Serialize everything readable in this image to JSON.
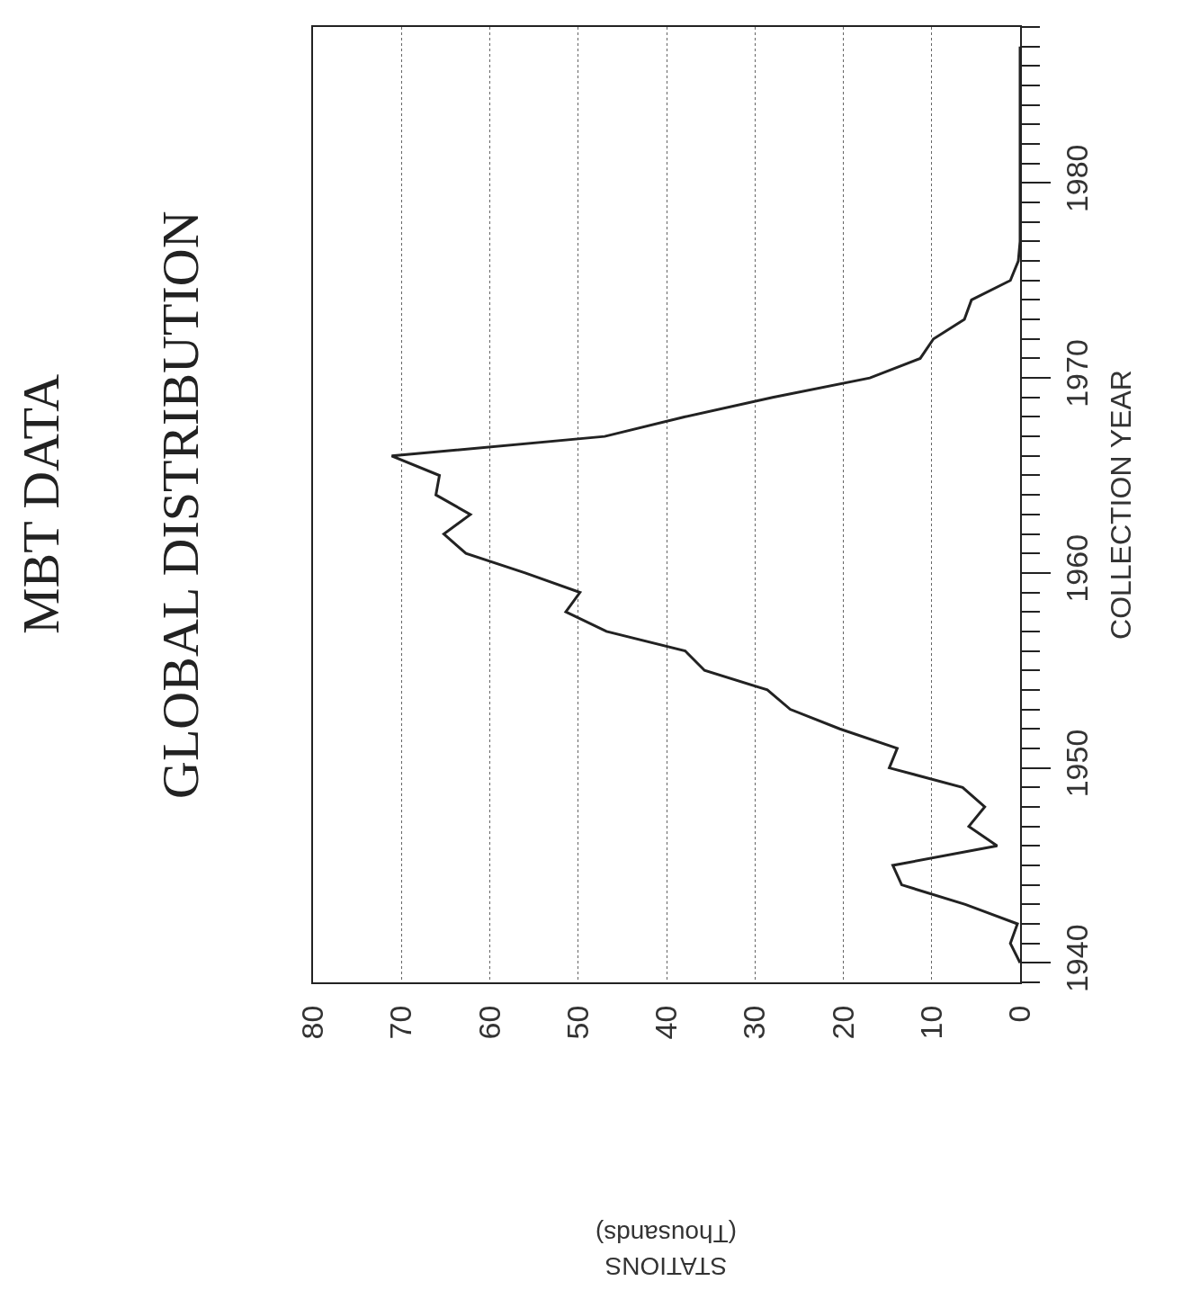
{
  "chart_data": {
    "type": "line",
    "title": "MBT DATA",
    "subtitle": "GLOBAL DISTRIBUTION",
    "annotations": [
      "STATIONS\n(Thousands)"
    ],
    "ylabel": "COLLECTION YEAR",
    "series": [
      {
        "color": "#222222",
        "x": [
          0,
          1.1,
          0.3,
          6.2,
          13.4,
          14.4,
          2.6,
          5.8,
          4,
          6.5,
          14.8,
          13.9,
          20.4,
          26,
          28.6,
          35.7,
          37.9,
          46.8,
          51.4,
          49.8,
          56,
          62.7,
          65.2,
          62.2,
          66.1,
          65.7,
          71.1,
          47,
          38,
          28,
          17,
          11.3,
          9.8,
          6.3,
          5.5,
          1.1,
          0.2,
          0,
          0,
          0,
          0,
          0,
          0,
          0,
          0,
          0,
          0,
          0
        ],
        "values": [
          1940,
          1941,
          1942,
          1943,
          1944,
          1945,
          1946,
          1947,
          1948,
          1949,
          1950,
          1951,
          1952,
          1953,
          1954,
          1955,
          1956,
          1957,
          1958,
          1959,
          1960,
          1961,
          1962,
          1963,
          1964,
          1965,
          1966,
          1967,
          1968,
          1969,
          1970,
          1971,
          1972,
          1973,
          1974,
          1975,
          1976,
          1977,
          1978,
          1979,
          1980,
          1981,
          1982,
          1983,
          1984,
          1985,
          1986,
          1987
        ]
      }
    ],
    "xlim": [
      80,
      0
    ],
    "xticks": [
      80,
      70,
      60,
      50,
      40,
      30,
      20,
      10,
      0
    ],
    "ylim": [
      1939,
      1988
    ],
    "yticks": [
      1940,
      1950,
      1960,
      1970,
      1980
    ],
    "grid": "x",
    "marker": "none",
    "line_style": "solid"
  }
}
